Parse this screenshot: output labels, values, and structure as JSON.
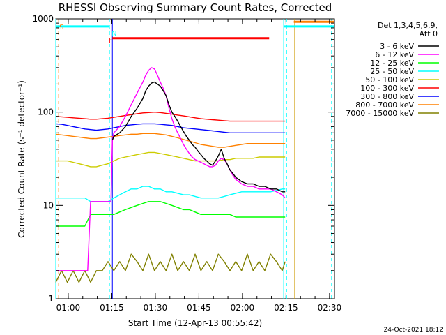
{
  "chart_data": {
    "type": "line",
    "title": "RHESSI Observing Summary Count Rates, Corrected",
    "xlabel": "Start Time (12-Apr-13 00:55:42)",
    "ylabel": "Corrected Count Rate (s⁻¹ detector⁻¹)",
    "yscale": "log",
    "ylim": [
      1,
      1000
    ],
    "xlim": [
      0,
      96
    ],
    "x_units": "minutes since 00:55:42",
    "x_ticks": [
      {
        "label": "01:00",
        "x": 4.3
      },
      {
        "label": "01:15",
        "x": 19.3
      },
      {
        "label": "01:30",
        "x": 34.3
      },
      {
        "label": "01:45",
        "x": 49.3
      },
      {
        "label": "02:00",
        "x": 64.3
      },
      {
        "label": "02:15",
        "x": 79.3
      },
      {
        "label": "02:30",
        "x": 94.3
      }
    ],
    "y_ticks": [
      {
        "label": "1",
        "y": 1
      },
      {
        "label": "10",
        "y": 10
      },
      {
        "label": "100",
        "y": 100
      },
      {
        "label": "1000",
        "y": 1000
      }
    ],
    "legend": {
      "header": [
        "Det 1,3,4,5,6,9,",
        "Att 0"
      ],
      "placement": "right"
    },
    "series": [
      {
        "name": "3 - 6 keV",
        "color": "#000000",
        "x": [
          19.5,
          20,
          22,
          24,
          26,
          28,
          30,
          31,
          32,
          33,
          34,
          35,
          36,
          37,
          38,
          39,
          40,
          41,
          42,
          43,
          44,
          45,
          46,
          47,
          48,
          49,
          50,
          51,
          52,
          53,
          54,
          55,
          56,
          57,
          58,
          59,
          60,
          61,
          62,
          63,
          64,
          66,
          68,
          70,
          72,
          74,
          76,
          78,
          79
        ],
        "y": [
          50,
          55,
          60,
          70,
          90,
          110,
          140,
          170,
          190,
          205,
          210,
          200,
          190,
          170,
          150,
          120,
          100,
          90,
          80,
          70,
          62,
          55,
          50,
          45,
          42,
          38,
          35,
          32,
          30,
          28,
          27,
          30,
          34,
          40,
          32,
          28,
          24,
          22,
          20,
          19,
          18,
          17,
          17,
          16,
          16,
          15,
          15,
          14,
          14
        ]
      },
      {
        "name": "6 - 12 keV",
        "color": "#ff00ff",
        "x": [
          0,
          1,
          2,
          3,
          4,
          5,
          6,
          7,
          8,
          9,
          10,
          11,
          12,
          13,
          14,
          15,
          16,
          17,
          18,
          19,
          19.5,
          20,
          22,
          24,
          26,
          28,
          30,
          31,
          32,
          33,
          34,
          35,
          36,
          37,
          38,
          39,
          40,
          41,
          42,
          43,
          44,
          45,
          46,
          47,
          48,
          49,
          50,
          51,
          52,
          53,
          54,
          55,
          56,
          57,
          58,
          59,
          60,
          61,
          62,
          63,
          64,
          66,
          68,
          70,
          72,
          74,
          76,
          78,
          79
        ],
        "y": [
          2,
          2,
          2,
          2,
          2,
          2,
          2,
          2,
          2,
          2,
          2,
          2,
          11,
          11,
          11,
          11,
          11,
          11,
          11,
          11,
          50,
          60,
          70,
          90,
          120,
          160,
          210,
          250,
          280,
          300,
          290,
          250,
          210,
          180,
          150,
          110,
          85,
          70,
          60,
          52,
          45,
          40,
          36,
          33,
          31,
          30,
          29,
          28,
          27,
          26,
          26,
          27,
          30,
          32,
          31,
          28,
          24,
          21,
          19,
          18,
          17,
          16,
          16,
          15,
          15,
          15,
          14,
          13,
          12
        ]
      },
      {
        "name": "12 - 25 keV",
        "color": "#00ff00",
        "x": [
          0,
          2,
          4,
          6,
          8,
          10,
          12,
          14,
          16,
          18,
          20,
          22,
          24,
          26,
          28,
          30,
          32,
          34,
          36,
          38,
          40,
          42,
          44,
          46,
          48,
          50,
          52,
          54,
          56,
          58,
          60,
          62,
          64,
          66,
          68,
          70,
          72,
          74,
          76,
          78,
          79
        ],
        "y": [
          6,
          6,
          6,
          6,
          6,
          6,
          8,
          8,
          8,
          8,
          8,
          8.5,
          9,
          9.5,
          10,
          10.5,
          11,
          11,
          11,
          10.5,
          10,
          9.5,
          9,
          9,
          8.5,
          8,
          8,
          8,
          8,
          8,
          8,
          7.5,
          7.5,
          7.5,
          7.5,
          7.5,
          7.5,
          7.5,
          7.5,
          7.5,
          7.5
        ]
      },
      {
        "name": "25 - 50 keV",
        "color": "#00ffff",
        "x": [
          0,
          2,
          4,
          6,
          8,
          10,
          12,
          14,
          16,
          18,
          20,
          22,
          24,
          26,
          28,
          30,
          32,
          34,
          36,
          38,
          40,
          42,
          44,
          46,
          48,
          50,
          52,
          54,
          56,
          58,
          60,
          62,
          64,
          66,
          68,
          70,
          72,
          74,
          76,
          78,
          79
        ],
        "y": [
          12,
          12,
          12,
          12,
          12,
          12,
          11,
          11,
          11,
          11,
          12,
          13,
          14,
          15,
          15,
          16,
          16,
          15,
          15,
          14,
          14,
          13.5,
          13,
          13,
          12.5,
          12,
          12,
          12,
          12,
          12.5,
          13,
          13.5,
          14,
          14,
          14,
          14,
          14,
          14,
          14.5,
          15,
          15
        ]
      },
      {
        "name": "50 - 100 keV",
        "color": "#cccc00",
        "x": [
          0,
          2,
          4,
          6,
          8,
          10,
          12,
          14,
          16,
          18,
          20,
          22,
          24,
          26,
          28,
          30,
          32,
          34,
          36,
          38,
          40,
          42,
          44,
          46,
          48,
          50,
          52,
          54,
          56,
          58,
          60,
          62,
          64,
          66,
          68,
          70,
          72,
          74,
          76,
          78,
          79
        ],
        "y": [
          30,
          30,
          30,
          29,
          28,
          27,
          26,
          26,
          27,
          28,
          30,
          32,
          33,
          34,
          35,
          36,
          37,
          37,
          36,
          35,
          34,
          33,
          32,
          31,
          30,
          30,
          30,
          30,
          30,
          31,
          31,
          32,
          32,
          32,
          32,
          33,
          33,
          33,
          33,
          33,
          33
        ]
      },
      {
        "name": "100 - 300 keV",
        "color": "#ff0000",
        "x": [
          0,
          2,
          4,
          6,
          8,
          10,
          12,
          14,
          16,
          18,
          20,
          22,
          24,
          26,
          28,
          30,
          32,
          34,
          36,
          38,
          40,
          42,
          44,
          46,
          48,
          50,
          52,
          54,
          56,
          58,
          60,
          62,
          64,
          66,
          68,
          70,
          72,
          74,
          76,
          78,
          79
        ],
        "y": [
          90,
          89,
          88,
          87,
          86,
          85,
          84,
          84,
          85,
          86,
          88,
          90,
          92,
          94,
          96,
          98,
          99,
          100,
          99,
          97,
          95,
          93,
          91,
          89,
          87,
          85,
          84,
          83,
          82,
          81,
          80,
          80,
          80,
          80,
          80,
          80,
          80,
          80,
          80,
          80,
          80
        ]
      },
      {
        "name": "300 - 800 keV",
        "color": "#0000ff",
        "x": [
          0,
          2,
          4,
          6,
          8,
          10,
          12,
          14,
          16,
          18,
          20,
          22,
          24,
          26,
          28,
          30,
          32,
          34,
          36,
          38,
          40,
          42,
          44,
          46,
          48,
          50,
          52,
          54,
          56,
          58,
          60,
          62,
          64,
          66,
          68,
          70,
          72,
          74,
          76,
          78,
          79
        ],
        "y": [
          75,
          74,
          72,
          70,
          68,
          66,
          65,
          64,
          65,
          66,
          68,
          70,
          72,
          73,
          74,
          75,
          75,
          75,
          74,
          73,
          72,
          70,
          68,
          67,
          66,
          65,
          64,
          63,
          62,
          61,
          60,
          60,
          60,
          60,
          60,
          60,
          60,
          60,
          60,
          60,
          60
        ]
      },
      {
        "name": "800 - 7000 keV",
        "color": "#ff8000",
        "x": [
          0,
          2,
          4,
          6,
          8,
          10,
          12,
          14,
          16,
          18,
          20,
          22,
          24,
          26,
          28,
          30,
          32,
          34,
          36,
          38,
          40,
          42,
          44,
          46,
          48,
          50,
          52,
          54,
          56,
          58,
          60,
          62,
          64,
          66,
          68,
          70,
          72,
          74,
          76,
          78,
          79
        ],
        "y": [
          58,
          57,
          56,
          55,
          54,
          53,
          52,
          52,
          53,
          54,
          55,
          56,
          57,
          58,
          58,
          59,
          59,
          59,
          58,
          57,
          55,
          53,
          51,
          49,
          47,
          45,
          44,
          43,
          42,
          42,
          43,
          44,
          45,
          46,
          46,
          46,
          46,
          46,
          46,
          46,
          46
        ]
      },
      {
        "name": "7000 - 15000 keV",
        "color": "#808000",
        "x": [
          0,
          2,
          4,
          6,
          8,
          10,
          12,
          14,
          16,
          18,
          20,
          22,
          24,
          26,
          28,
          30,
          32,
          34,
          36,
          38,
          40,
          42,
          44,
          46,
          48,
          50,
          52,
          54,
          56,
          58,
          60,
          62,
          64,
          66,
          68,
          70,
          72,
          74,
          76,
          78,
          79
        ],
        "y": [
          1.5,
          2,
          1.5,
          2,
          1.5,
          2,
          1.5,
          2,
          2,
          2.5,
          2,
          2.5,
          2,
          3,
          2.5,
          2,
          3,
          2,
          2.5,
          2,
          3,
          2,
          2.5,
          2,
          3,
          2,
          2.5,
          2,
          3,
          2.5,
          2,
          2.5,
          2,
          3,
          2,
          2.5,
          2,
          3,
          2.5,
          2,
          2.5
        ]
      }
    ],
    "annotations": [
      {
        "text": "S",
        "color": "#ff8000",
        "x": 0.5
      },
      {
        "text": "N",
        "color": "#00ffff",
        "x": 18.5
      },
      {
        "text": "F",
        "color": "#ff0000",
        "x": 17.5
      }
    ],
    "bars": [
      {
        "name": "saa-bar",
        "color": "#00ffff",
        "x0": 0,
        "x1": 18.5,
        "y": 830
      },
      {
        "name": "night-bar",
        "color": "#00ffff",
        "x0": 78.5,
        "x1": 96,
        "y": 830
      },
      {
        "name": "flare-bar",
        "color": "#ff0000",
        "x0": 19.5,
        "x1": 73.5,
        "y": 620
      },
      {
        "name": "attenuator-bar",
        "color": "#ff8000",
        "x0": 82,
        "x1": 96,
        "y": 930
      }
    ],
    "vlines": [
      {
        "x": 0,
        "color": "#00ffff",
        "dash": false
      },
      {
        "x": 1,
        "color": "#ff8000",
        "dash": true
      },
      {
        "x": 18.5,
        "color": "#00ffff",
        "dash": true
      },
      {
        "x": 19.5,
        "color": "#0000ff",
        "dash": false
      },
      {
        "x": 78.5,
        "color": "#00ffff",
        "dash": false
      },
      {
        "x": 79.5,
        "color": "#00ffff",
        "dash": true
      },
      {
        "x": 82.3,
        "color": "#cc9900",
        "dash": false
      },
      {
        "x": 95,
        "color": "#00ffff",
        "dash": true
      }
    ]
  },
  "footer": {
    "date": "24-Oct-2021 18:12"
  }
}
